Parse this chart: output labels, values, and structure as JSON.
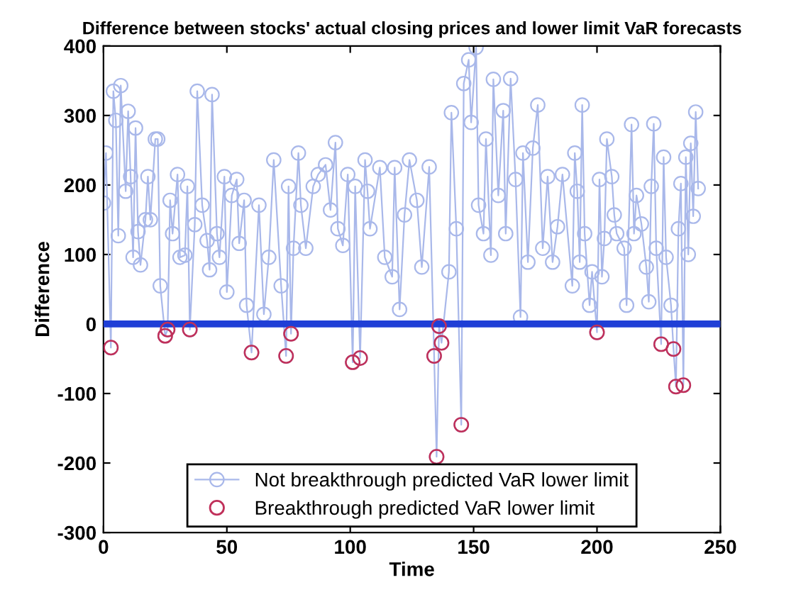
{
  "chart_data": {
    "type": "line",
    "title": "Difference between stocks' actual closing prices and lower limit VaR forecasts",
    "xlabel": "Time",
    "ylabel": "Difference",
    "series": [
      {
        "name": "Not breakthrough predicted VaR lower limit",
        "color": "#a9b8ea",
        "marker": "circle",
        "x": [
          0,
          1,
          3,
          4,
          5,
          6,
          7,
          9,
          10,
          11,
          12,
          13,
          14,
          15,
          17,
          18,
          19,
          21,
          22,
          23,
          25,
          26,
          27,
          28,
          30,
          31,
          33,
          34,
          35,
          37,
          38,
          40,
          42,
          43,
          44,
          46,
          47,
          49,
          50,
          52,
          54,
          55,
          57,
          58,
          60,
          63,
          65,
          67,
          69,
          72,
          74,
          75,
          76,
          77,
          79,
          80,
          82,
          85,
          87,
          90,
          92,
          94,
          95,
          97,
          99,
          101,
          102,
          104,
          106,
          107,
          108,
          112,
          114,
          117,
          118,
          120,
          122,
          124,
          127,
          129,
          132,
          134,
          135,
          136,
          137,
          140,
          141,
          143,
          145,
          146,
          148,
          149,
          151,
          152,
          154,
          155,
          157,
          158,
          160,
          162,
          163,
          165,
          167,
          169,
          170,
          172,
          174,
          176,
          178,
          180,
          182,
          184,
          186,
          190,
          191,
          192,
          193,
          194,
          195,
          197,
          198,
          200,
          201,
          202,
          203,
          204,
          206,
          207,
          208,
          211,
          212,
          214,
          215,
          216,
          218,
          220,
          221,
          222,
          223,
          224,
          226,
          227,
          228,
          230,
          231,
          232,
          233,
          234,
          235,
          236,
          237,
          238,
          239,
          240,
          241
        ],
        "values": [
          174,
          246,
          -34,
          335,
          293,
          127,
          343,
          191,
          306,
          212,
          96,
          282,
          133,
          85,
          150,
          212,
          150,
          266,
          266,
          55,
          -17,
          -8,
          178,
          130,
          215,
          96,
          99,
          198,
          -8,
          143,
          335,
          171,
          120,
          78,
          330,
          130,
          96,
          212,
          46,
          185,
          208,
          116,
          178,
          27,
          -41,
          171,
          14,
          96,
          236,
          55,
          -46,
          198,
          -14,
          109,
          246,
          171,
          109,
          198,
          215,
          229,
          164,
          261,
          137,
          113,
          215,
          -55,
          198,
          -49,
          236,
          191,
          137,
          225,
          96,
          68,
          225,
          21,
          157,
          236,
          178,
          82,
          226,
          -46,
          -191,
          -3,
          -27,
          75,
          304,
          137,
          -145,
          346,
          380,
          290,
          398,
          171,
          130,
          266,
          99,
          352,
          185,
          307,
          130,
          353,
          208,
          10,
          246,
          89,
          253,
          315,
          109,
          212,
          89,
          140,
          215,
          55,
          246,
          191,
          89,
          315,
          130,
          27,
          75,
          -12,
          208,
          68,
          123,
          266,
          212,
          157,
          130,
          109,
          27,
          287,
          130,
          185,
          144,
          82,
          32,
          198,
          288,
          109,
          -29,
          240,
          96,
          27,
          -36,
          -90,
          137,
          202,
          -88,
          240,
          100,
          260,
          155,
          305,
          195
        ]
      },
      {
        "name": "Breakthrough predicted VaR lower limit",
        "color": "#c0305a",
        "type": "scatter",
        "marker": "circle",
        "x": [
          3,
          25,
          26,
          35,
          60,
          74,
          76,
          101,
          104,
          134,
          135,
          136,
          137,
          145,
          200,
          226,
          231,
          232,
          235
        ],
        "values": [
          -34,
          -17,
          -8,
          -8,
          -41,
          -46,
          -14,
          -55,
          -49,
          -46,
          -191,
          -3,
          -27,
          -145,
          -12,
          -29,
          -36,
          -90,
          -88
        ]
      }
    ],
    "ref_lines": [
      {
        "axis": "y",
        "value": 0,
        "color": "#1f3fd6"
      }
    ],
    "xlim": [
      0,
      250
    ],
    "xticks": [
      0,
      50,
      100,
      150,
      200,
      250
    ],
    "ylim": [
      -300,
      400
    ],
    "yticks": [
      -300,
      -200,
      -100,
      0,
      100,
      200,
      300,
      400
    ],
    "grid": false,
    "legend": "bottom"
  }
}
